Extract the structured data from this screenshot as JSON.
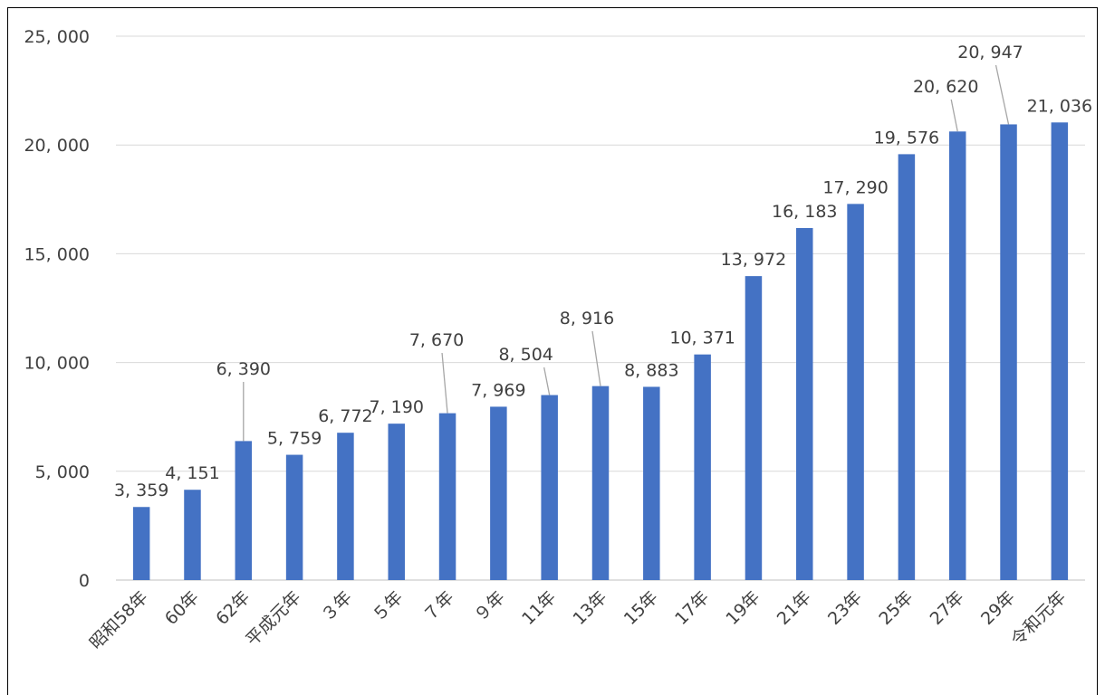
{
  "chart_data": {
    "type": "bar",
    "categories": [
      "昭和58年",
      "60年",
      "62年",
      "平成元年",
      "３年",
      "５年",
      "７年",
      "９年",
      "11年",
      "13年",
      "15年",
      "17年",
      "19年",
      "21年",
      "23年",
      "25年",
      "27年",
      "29年",
      "令和元年"
    ],
    "values": [
      3359,
      4151,
      6390,
      5759,
      6772,
      7190,
      7670,
      7969,
      8504,
      8916,
      8883,
      10371,
      13972,
      16183,
      17290,
      19576,
      20620,
      20947,
      21036
    ],
    "data_labels": [
      "3, 359",
      "4, 151",
      "6, 390",
      "5, 759",
      "6, 772",
      "7, 190",
      "7, 670",
      "7, 969",
      "8, 504",
      "8, 916",
      "8, 883",
      "10, 371",
      "13, 972",
      "16, 183",
      "17, 290",
      "19, 576",
      "20, 620",
      "20, 947",
      "21, 036"
    ],
    "y_ticks": [
      0,
      5000,
      10000,
      15000,
      20000,
      25000
    ],
    "y_tick_labels": [
      "0",
      "5, 000",
      "10, 000",
      "15, 000",
      "20, 000",
      "25, 000"
    ],
    "ylim": [
      0,
      25000
    ],
    "grid": true,
    "legend": "none",
    "bar_color": "#4472c4",
    "title": "",
    "xlabel": "",
    "ylabel": ""
  }
}
